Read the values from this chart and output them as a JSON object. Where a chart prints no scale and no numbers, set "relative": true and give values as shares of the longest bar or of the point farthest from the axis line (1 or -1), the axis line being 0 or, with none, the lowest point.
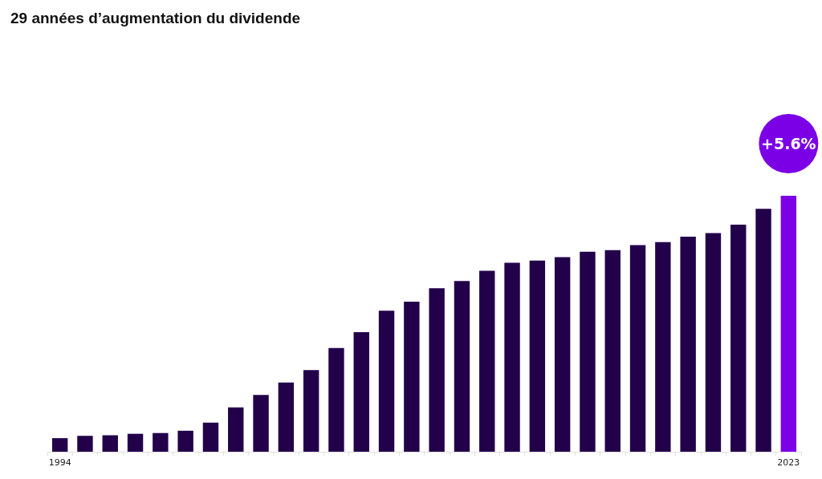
{
  "chart_data": {
    "type": "bar",
    "title": "29 années d’augmentation du dividende",
    "relative": true,
    "categories": [
      "1994",
      null,
      null,
      null,
      null,
      null,
      null,
      null,
      null,
      null,
      null,
      null,
      null,
      null,
      null,
      null,
      null,
      null,
      null,
      null,
      null,
      null,
      null,
      null,
      null,
      null,
      null,
      null,
      null,
      "2023"
    ],
    "values": [
      0.053,
      0.062,
      0.064,
      0.07,
      0.073,
      0.082,
      0.114,
      0.173,
      0.222,
      0.27,
      0.319,
      0.405,
      0.467,
      0.551,
      0.586,
      0.639,
      0.667,
      0.707,
      0.738,
      0.747,
      0.76,
      0.781,
      0.788,
      0.807,
      0.819,
      0.84,
      0.854,
      0.887,
      0.949,
      1
    ],
    "colors": [
      "#22004a",
      "#22004a",
      "#22004a",
      "#22004a",
      "#22004a",
      "#22004a",
      "#22004a",
      "#22004a",
      "#22004a",
      "#22004a",
      "#22004a",
      "#22004a",
      "#22004a",
      "#22004a",
      "#22004a",
      "#22004a",
      "#22004a",
      "#22004a",
      "#22004a",
      "#22004a",
      "#22004a",
      "#22004a",
      "#22004a",
      "#22004a",
      "#22004a",
      "#22004a",
      "#22004a",
      "#22004a",
      "#22004a",
      "#7b00e6"
    ],
    "annotations": [
      "+5.6%"
    ]
  }
}
